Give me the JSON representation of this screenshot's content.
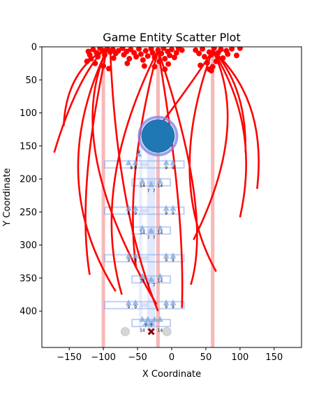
{
  "chart_data": {
    "type": "scatter",
    "title": "Game Entity Scatter Plot",
    "xlabel": "X Coordinate",
    "ylabel": "Y Coordinate",
    "xlim": [
      -190,
      190
    ],
    "ylim": [
      455,
      0
    ],
    "y_axis_inverted": true,
    "x_ticks": [
      -150,
      -100,
      -50,
      0,
      50,
      100,
      150
    ],
    "x_tick_labels": [
      "−150",
      "−100",
      "−50",
      "0",
      "50",
      "100",
      "150"
    ],
    "y_ticks": [
      0,
      50,
      100,
      150,
      200,
      250,
      300,
      350,
      400
    ],
    "y_tick_labels": [
      "0",
      "50",
      "100",
      "150",
      "200",
      "250",
      "300",
      "350",
      "400"
    ],
    "grid": false,
    "legend": "none",
    "colors": {
      "red": "#ff0000",
      "pale_red": "#f4a0a0",
      "blue": "#1f77b4",
      "pale_blue": "#8aa9ec",
      "triangle": "#7aa6e2",
      "gray": "#cccccc",
      "dark_red": "#8b0000"
    },
    "vertical_bands": [
      -100,
      -20,
      60
    ],
    "top_points": [
      [
        -122,
        7
      ],
      [
        -120,
        12
      ],
      [
        -118,
        18
      ],
      [
        -124,
        22
      ],
      [
        -115,
        4
      ],
      [
        -110,
        9
      ],
      [
        -108,
        15
      ],
      [
        -112,
        25
      ],
      [
        -105,
        2
      ],
      [
        -100,
        6
      ],
      [
        -98,
        12
      ],
      [
        -94,
        3
      ],
      [
        -90,
        8
      ],
      [
        -86,
        4
      ],
      [
        -82,
        10
      ],
      [
        -85,
        17
      ],
      [
        -78,
        6
      ],
      [
        -72,
        2
      ],
      [
        -70,
        12
      ],
      [
        -66,
        7
      ],
      [
        -62,
        18
      ],
      [
        -60,
        4
      ],
      [
        -55,
        9
      ],
      [
        -52,
        15
      ],
      [
        -48,
        3
      ],
      [
        -45,
        11
      ],
      [
        -42,
        20
      ],
      [
        -38,
        6
      ],
      [
        -35,
        14
      ],
      [
        -30,
        3
      ],
      [
        -28,
        9
      ],
      [
        -25,
        16
      ],
      [
        -20,
        5
      ],
      [
        -18,
        22
      ],
      [
        -15,
        10
      ],
      [
        -12,
        2
      ],
      [
        -10,
        18
      ],
      [
        -6,
        7
      ],
      [
        -3,
        13
      ],
      [
        0,
        4
      ],
      [
        4,
        16
      ],
      [
        7,
        9
      ],
      [
        10,
        2
      ],
      [
        15,
        5
      ],
      [
        35,
        5
      ],
      [
        40,
        10
      ],
      [
        45,
        3
      ],
      [
        48,
        15
      ],
      [
        52,
        24
      ],
      [
        55,
        8
      ],
      [
        58,
        12
      ],
      [
        60,
        30
      ],
      [
        62,
        2
      ],
      [
        65,
        22
      ],
      [
        68,
        9
      ],
      [
        72,
        4
      ],
      [
        75,
        17
      ],
      [
        80,
        6
      ],
      [
        82,
        11
      ],
      [
        88,
        3
      ],
      [
        95,
        13
      ],
      [
        100,
        2
      ],
      [
        -100,
        29
      ],
      [
        -92,
        33
      ],
      [
        -40,
        29
      ],
      [
        -10,
        34
      ],
      [
        -25,
        30
      ],
      [
        -5,
        26
      ],
      [
        55,
        34
      ],
      [
        58,
        36
      ],
      [
        42,
        28
      ],
      [
        -65,
        25
      ]
    ],
    "tentacle_curves": [
      {
        "origin": [
          -100,
          5
        ],
        "end": [
          -158,
          120
        ],
        "ctrl": [
          -155,
          40
        ]
      },
      {
        "origin": [
          -100,
          5
        ],
        "end": [
          -172,
          160
        ],
        "ctrl": [
          -140,
          50
        ]
      },
      {
        "origin": [
          -95,
          5
        ],
        "end": [
          -82,
          370
        ],
        "ctrl": [
          -185,
          200
        ]
      },
      {
        "origin": [
          -95,
          5
        ],
        "end": [
          -120,
          345
        ],
        "ctrl": [
          -140,
          220
        ]
      },
      {
        "origin": [
          -95,
          5
        ],
        "end": [
          -22,
          390
        ],
        "ctrl": [
          -160,
          150
        ]
      },
      {
        "origin": [
          -90,
          5
        ],
        "end": [
          -20,
          400
        ],
        "ctrl": [
          -80,
          250
        ]
      },
      {
        "origin": [
          -20,
          5
        ],
        "end": [
          -73,
          375
        ],
        "ctrl": [
          -120,
          210
        ]
      },
      {
        "origin": [
          -20,
          5
        ],
        "end": [
          -52,
          335
        ],
        "ctrl": [
          -70,
          200
        ]
      },
      {
        "origin": [
          -20,
          5
        ],
        "end": [
          15,
          395
        ],
        "ctrl": [
          20,
          250
        ]
      },
      {
        "origin": [
          -20,
          5
        ],
        "end": [
          28,
          360
        ],
        "ctrl": [
          60,
          250
        ]
      },
      {
        "origin": [
          60,
          5
        ],
        "end": [
          -18,
          120
        ],
        "ctrl": [
          40,
          40
        ]
      },
      {
        "origin": [
          60,
          5
        ],
        "end": [
          32,
          292
        ],
        "ctrl": [
          115,
          120
        ]
      },
      {
        "origin": [
          60,
          5
        ],
        "end": [
          100,
          258
        ],
        "ctrl": [
          130,
          120
        ]
      },
      {
        "origin": [
          60,
          5
        ],
        "end": [
          108,
          160
        ],
        "ctrl": [
          110,
          60
        ]
      },
      {
        "origin": [
          60,
          5
        ],
        "end": [
          65,
          340
        ],
        "ctrl": [
          -10,
          200
        ]
      },
      {
        "origin": [
          60,
          5
        ],
        "end": [
          125,
          215
        ],
        "ctrl": [
          140,
          80
        ]
      }
    ],
    "big_circle": {
      "x": -20,
      "y": 135
    },
    "blue_crosses": [
      {
        "x": -40,
        "y": 178,
        "dx": 58,
        "dy": 6
      },
      {
        "x": -30,
        "y": 205,
        "dx": 28,
        "dy": 6
      },
      {
        "x": -40,
        "y": 248,
        "dx": 58,
        "dy": 6
      },
      {
        "x": -30,
        "y": 278,
        "dx": 28,
        "dy": 6
      },
      {
        "x": -40,
        "y": 320,
        "dx": 58,
        "dy": 6
      },
      {
        "x": -30,
        "y": 352,
        "dx": 28,
        "dy": 6
      },
      {
        "x": -40,
        "y": 391,
        "dx": 58,
        "dy": 6
      },
      {
        "x": -30,
        "y": 418,
        "dx": 28,
        "dy": 6
      }
    ],
    "triangles": [
      [
        -63,
        175
      ],
      [
        -53,
        175
      ],
      [
        -8,
        175
      ],
      [
        2,
        175
      ],
      [
        -43,
        203
      ],
      [
        -17,
        203
      ],
      [
        -30,
        208
      ],
      [
        -63,
        244
      ],
      [
        -53,
        244
      ],
      [
        -8,
        244
      ],
      [
        2,
        244
      ],
      [
        -43,
        274
      ],
      [
        -17,
        274
      ],
      [
        -30,
        278
      ],
      [
        -63,
        316
      ],
      [
        -53,
        316
      ],
      [
        -8,
        316
      ],
      [
        2,
        316
      ],
      [
        -43,
        347
      ],
      [
        -17,
        347
      ],
      [
        -30,
        352
      ],
      [
        -63,
        387
      ],
      [
        -53,
        387
      ],
      [
        -8,
        387
      ],
      [
        2,
        387
      ],
      [
        -43,
        412
      ],
      [
        -35,
        412
      ],
      [
        -25,
        412
      ],
      [
        -17,
        412
      ],
      [
        -38,
        418
      ],
      [
        -30,
        418
      ],
      [
        -48,
        162
      ]
    ],
    "number_labels": [
      {
        "x": -48,
        "y": 161,
        "text": "9"
      },
      {
        "x": -59,
        "y": 185,
        "text": "8"
      },
      {
        "x": -53,
        "y": 185,
        "text": "9"
      },
      {
        "x": -8,
        "y": 185,
        "text": "9"
      },
      {
        "x": 2,
        "y": 185,
        "text": "9"
      },
      {
        "x": -43,
        "y": 212,
        "text": "14"
      },
      {
        "x": -17,
        "y": 212,
        "text": "14"
      },
      {
        "x": -34,
        "y": 220,
        "text": "7"
      },
      {
        "x": -26,
        "y": 220,
        "text": "7"
      },
      {
        "x": -63,
        "y": 254,
        "text": "9"
      },
      {
        "x": -53,
        "y": 254,
        "text": "9"
      },
      {
        "x": -8,
        "y": 254,
        "text": "9"
      },
      {
        "x": 2,
        "y": 254,
        "text": "9"
      },
      {
        "x": -43,
        "y": 283,
        "text": "14"
      },
      {
        "x": -17,
        "y": 283,
        "text": "14"
      },
      {
        "x": -34,
        "y": 291,
        "text": "7"
      },
      {
        "x": -26,
        "y": 291,
        "text": "7"
      },
      {
        "x": -63,
        "y": 325,
        "text": "9"
      },
      {
        "x": -53,
        "y": 325,
        "text": "9"
      },
      {
        "x": -8,
        "y": 325,
        "text": "9"
      },
      {
        "x": 2,
        "y": 325,
        "text": "9"
      },
      {
        "x": -43,
        "y": 356,
        "text": "14"
      },
      {
        "x": -17,
        "y": 356,
        "text": "14"
      },
      {
        "x": -34,
        "y": 363,
        "text": "7"
      },
      {
        "x": -26,
        "y": 363,
        "text": "7"
      },
      {
        "x": -63,
        "y": 396,
        "text": "9"
      },
      {
        "x": -53,
        "y": 396,
        "text": "9"
      },
      {
        "x": -8,
        "y": 396,
        "text": "9"
      },
      {
        "x": 2,
        "y": 396,
        "text": "9"
      },
      {
        "x": -38,
        "y": 424,
        "text": "7"
      },
      {
        "x": -30,
        "y": 424,
        "text": "7"
      },
      {
        "x": -43,
        "y": 431,
        "text": "14"
      },
      {
        "x": -17,
        "y": 431,
        "text": "14"
      }
    ],
    "gray_points": [
      [
        -68,
        431
      ],
      [
        -7,
        431
      ]
    ],
    "dark_red_x": {
      "x": -30,
      "y": 431
    }
  }
}
